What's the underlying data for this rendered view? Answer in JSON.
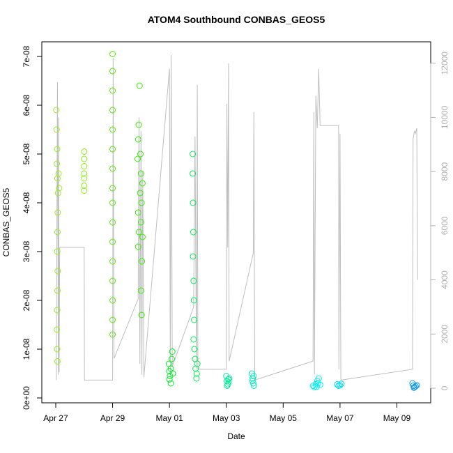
{
  "chart_data": {
    "type": "scatter",
    "title": "ATOM4 Southbound CONBAS_GEOS5",
    "x_label": "Date",
    "y_label": "CONBAS_GEOS5",
    "xlim": [
      -0.49,
      13.19
    ],
    "xticks": [
      {
        "value": 0,
        "label": "Apr 27"
      },
      {
        "value": 2,
        "label": "Apr 29"
      },
      {
        "value": 4,
        "label": "May 01"
      },
      {
        "value": 6,
        "label": "May 03"
      },
      {
        "value": 8,
        "label": "May 05"
      },
      {
        "value": 10,
        "label": "May 07"
      },
      {
        "value": 12,
        "label": "May 09"
      }
    ],
    "ylim": [
      -1e-09,
      7.3e-08
    ],
    "yticks": [
      {
        "value": 0,
        "label": "0e+00"
      },
      {
        "value": 1e-08,
        "label": "1e-08"
      },
      {
        "value": 2e-08,
        "label": "2e-08"
      },
      {
        "value": 3e-08,
        "label": "3e-08"
      },
      {
        "value": 4e-08,
        "label": "4e-08"
      },
      {
        "value": 5e-08,
        "label": "5e-08"
      },
      {
        "value": 6e-08,
        "label": "6e-08"
      },
      {
        "value": 7e-08,
        "label": "7e-08"
      }
    ],
    "y2lim": [
      -540,
      12790
    ],
    "y2ticks": [
      0,
      2000,
      4000,
      6000,
      8000,
      10000,
      12000
    ],
    "series": [
      {
        "color": "#99ee22",
        "x": [
          0.02,
          0.03,
          0.05,
          0.04,
          0.06,
          0.08,
          0.07,
          0.06,
          0.05,
          0.07,
          0.06,
          0.05,
          0.04,
          0.05,
          0.06,
          0.1,
          0.12
        ],
        "values": [
          5.9e-08,
          5.5e-08,
          5.1e-08,
          4.8e-08,
          4.5e-08,
          4.2e-08,
          3.8e-08,
          3.4e-08,
          3e-08,
          2.6e-08,
          2.2e-08,
          1.8e-08,
          1.4e-08,
          1e-08,
          7.5e-09,
          4.6e-08,
          4.3e-08
        ]
      },
      {
        "color": "#88ee11",
        "x": [
          1.0,
          1.0,
          1.0,
          1.0,
          1.0,
          1.0,
          1.0
        ],
        "values": [
          5.05e-08,
          4.9e-08,
          4.75e-08,
          4.6e-08,
          4.5e-08,
          4.35e-08,
          4.25e-08
        ]
      },
      {
        "color": "#55ee00",
        "x": [
          2.0,
          2.0,
          2.0,
          2.0,
          2.0,
          2.0,
          2.0,
          2.0,
          2.0,
          2.0,
          2.0,
          2.0,
          2.0,
          2.0,
          2.0,
          2.0
        ],
        "values": [
          7.05e-08,
          6.7e-08,
          6.3e-08,
          5.9e-08,
          5.5e-08,
          5.1e-08,
          4.7e-08,
          4.3e-08,
          4e-08,
          3.6e-08,
          3.2e-08,
          2.8e-08,
          2.4e-08,
          2e-08,
          1.6e-08,
          1.3e-08
        ]
      },
      {
        "color": "#33ee00",
        "x": [
          2.9,
          2.88,
          2.92,
          2.95,
          2.9,
          2.98,
          3.0,
          2.93,
          2.97,
          3.02,
          3.05,
          2.9,
          3.0,
          3.05,
          3.03,
          3.0,
          3.02
        ],
        "values": [
          5.3e-08,
          4.9e-08,
          5.6e-08,
          6.4e-08,
          3.8e-08,
          5e-08,
          4.6e-08,
          3.4e-08,
          4.2e-08,
          4e-08,
          4.4e-08,
          3.1e-08,
          3.6e-08,
          3.3e-08,
          2.8e-08,
          2.2e-08,
          1.7e-08
        ]
      },
      {
        "color": "#00ee22",
        "x": [
          3.98,
          4.0,
          4.02,
          4.05,
          4.08,
          4.1,
          4.0,
          4.05,
          4.12
        ],
        "values": [
          7e-09,
          5.5e-09,
          4.5e-09,
          6e-09,
          8e-09,
          9.5e-09,
          3.8e-09,
          3e-09,
          5e-09
        ]
      },
      {
        "color": "#00ee55",
        "x": [
          4.82,
          4.82,
          4.83,
          4.84,
          4.83,
          4.85,
          4.86,
          4.87,
          4.85,
          4.88,
          4.9,
          4.92,
          4.95,
          4.98,
          4.96
        ],
        "values": [
          5e-08,
          4.6e-08,
          4e-08,
          3.4e-08,
          2.9e-08,
          2.4e-08,
          2e-08,
          1.6e-08,
          1.2e-08,
          1e-08,
          8e-09,
          6e-09,
          4e-09,
          7e-09,
          5e-09
        ]
      },
      {
        "color": "#00ee99",
        "x": [
          6.0,
          6.02,
          6.05,
          6.08,
          6.1,
          6.03,
          6.07
        ],
        "values": [
          4.5e-09,
          3.5e-09,
          2.8e-09,
          3.2e-09,
          4e-09,
          2.5e-09,
          3.8e-09
        ]
      },
      {
        "color": "#00eebb",
        "x": [
          6.9,
          6.93,
          6.95,
          6.97,
          6.92,
          6.96
        ],
        "values": [
          5e-09,
          4e-09,
          3e-09,
          2.5e-09,
          3.5e-09,
          4.5e-09
        ]
      },
      {
        "color": "#00eeee",
        "x": [
          9.05,
          9.1,
          9.15,
          9.2,
          9.25,
          9.3,
          9.18,
          9.22
        ],
        "values": [
          2.5e-09,
          2.2e-09,
          2.8e-09,
          3.5e-09,
          4e-09,
          2.7e-09,
          2.3e-09,
          3e-09
        ]
      },
      {
        "color": "#00ddee",
        "x": [
          9.9,
          9.95,
          10.0,
          10.05
        ],
        "values": [
          2.8e-09,
          2.5e-09,
          2.6e-09,
          2.9e-09
        ]
      },
      {
        "color": "#1199ee",
        "x": [
          12.55,
          12.58,
          12.62,
          12.66,
          12.7,
          12.6
        ],
        "values": [
          3e-09,
          2.5e-09,
          2.2e-09,
          2.4e-09,
          2.6e-09,
          2.1e-09
        ]
      },
      {
        "type": "line",
        "axis": "y2",
        "color": "#bebebe",
        "x": [
          0.02,
          0.06,
          0.09,
          0.1,
          0.12,
          0.14,
          1.0,
          1.01,
          2.0,
          2.02,
          2.05,
          2.9,
          2.93,
          2.96,
          3.0,
          3.03,
          3.06,
          3.1,
          4.0,
          4.03,
          4.06,
          4.1,
          4.85,
          4.9,
          4.95,
          4.98,
          5.0,
          6.0,
          6.02,
          6.05,
          6.08,
          6.1,
          6.95,
          6.97,
          7.0,
          9.05,
          9.08,
          9.1,
          9.15,
          9.2,
          9.25,
          9.3,
          9.95,
          9.96,
          10.0,
          10.03,
          12.55,
          12.57,
          12.62,
          12.65,
          12.7,
          12.73
        ],
        "values": [
          300,
          11300,
          500,
          10000,
          600,
          5200,
          5200,
          300,
          300,
          12200,
          1100,
          3300,
          10000,
          900,
          9500,
          500,
          8000,
          400,
          11800,
          500,
          12300,
          800,
          3000,
          9300,
          700,
          11200,
          700,
          700,
          10500,
          5200,
          12000,
          1000,
          5000,
          10200,
          300,
          1000,
          10200,
          500,
          10800,
          9600,
          11800,
          9700,
          9700,
          700,
          9400,
          300,
          700,
          9200,
          9500,
          9400,
          9600,
          4000
        ]
      }
    ]
  }
}
